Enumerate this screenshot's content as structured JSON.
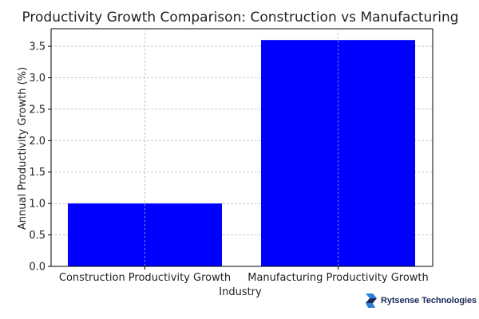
{
  "chart_data": {
    "type": "bar",
    "title": "Productivity Growth Comparison: Construction vs Manufacturing",
    "xlabel": "Industry",
    "ylabel": "Annual Productivity Growth (%)",
    "categories": [
      "Construction Productivity Growth",
      "Manufacturing Productivity Growth"
    ],
    "values": [
      1.0,
      3.6
    ],
    "ylim": [
      0,
      3.78
    ],
    "yticks": [
      "0.0",
      "0.5",
      "1.0",
      "1.5",
      "2.0",
      "2.5",
      "3.0",
      "3.5"
    ],
    "bar_color": "#0000ff",
    "grid": true
  },
  "branding": {
    "company": "Rytsense Technologies",
    "logo_icon": "rytsense-logo-icon",
    "logo_colors": [
      "#2f7fd8",
      "#1a2a5a"
    ]
  }
}
